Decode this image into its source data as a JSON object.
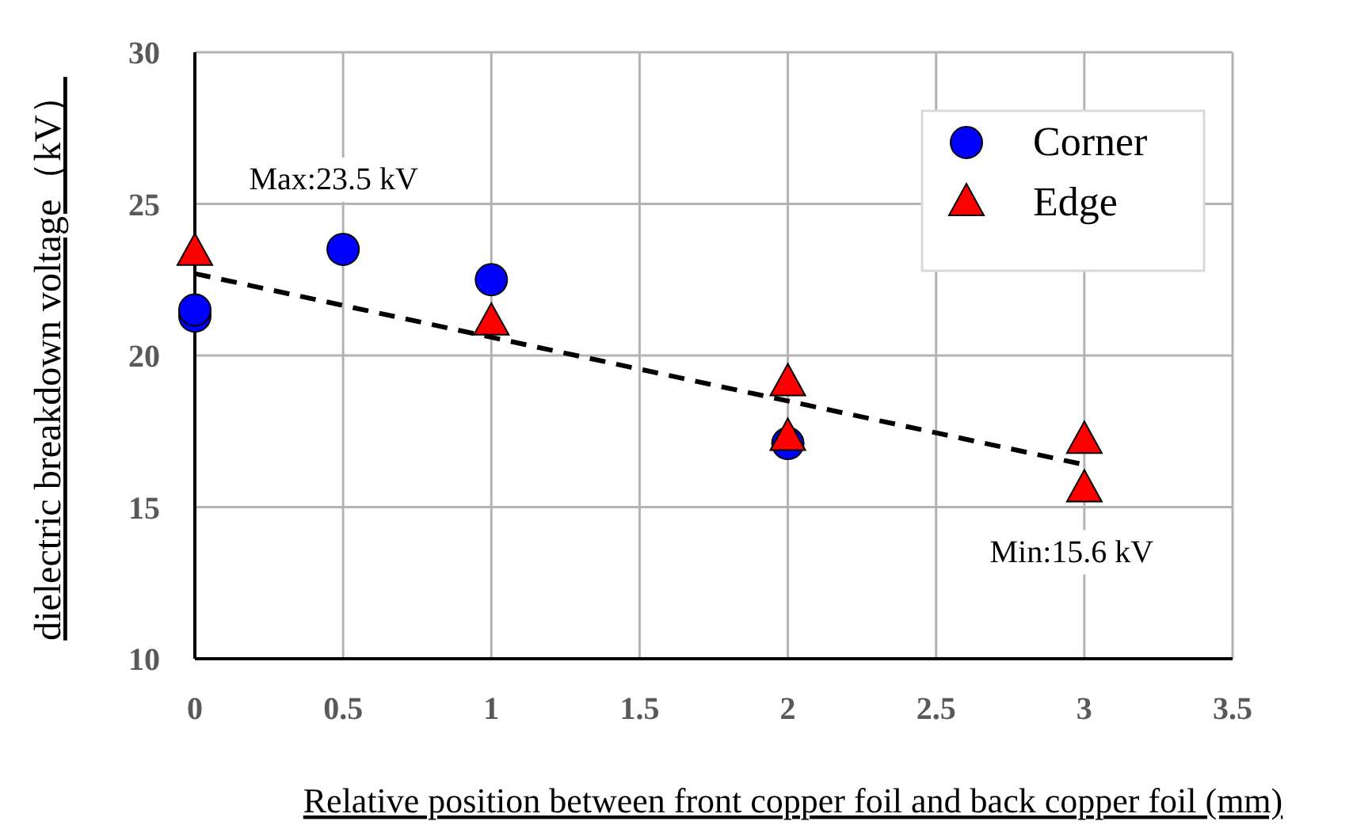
{
  "chart_data": {
    "type": "scatter",
    "xlabel": "Relative position between  front copper foil and back copper foil (mm)",
    "ylabel": "dielectric breakdown voltage（kV）",
    "xlim": [
      0,
      3.5
    ],
    "xticks": [
      0,
      0.5,
      1,
      1.5,
      2,
      2.5,
      3,
      3.5
    ],
    "ylim": [
      10,
      30
    ],
    "yticks": [
      10,
      15,
      20,
      25,
      30
    ],
    "grid": true,
    "legend": "top right",
    "series": [
      {
        "name": "Corner",
        "color": "#0000ff",
        "marker": "circle",
        "x": [
          0,
          0,
          0.5,
          1,
          2
        ],
        "values": [
          21.3,
          21.5,
          23.5,
          22.5,
          17.1
        ]
      },
      {
        "name": "Edge",
        "color": "#ff0000",
        "marker": "triangle",
        "x": [
          0,
          1,
          2,
          2,
          3,
          3
        ],
        "values": [
          23.4,
          21.1,
          19.1,
          17.3,
          17.2,
          15.6
        ]
      },
      {
        "type": "line",
        "color": "#000000",
        "marker": "none",
        "line_style": "dashed",
        "x": [
          0,
          3
        ],
        "values": [
          22.7,
          16.4
        ]
      }
    ],
    "annotations": [
      {
        "text": "Max:23.5 kV",
        "x": 0.5,
        "y": 23.5
      },
      {
        "text": "Min:15.6 kV",
        "x": 3,
        "y": 15.6
      }
    ]
  }
}
